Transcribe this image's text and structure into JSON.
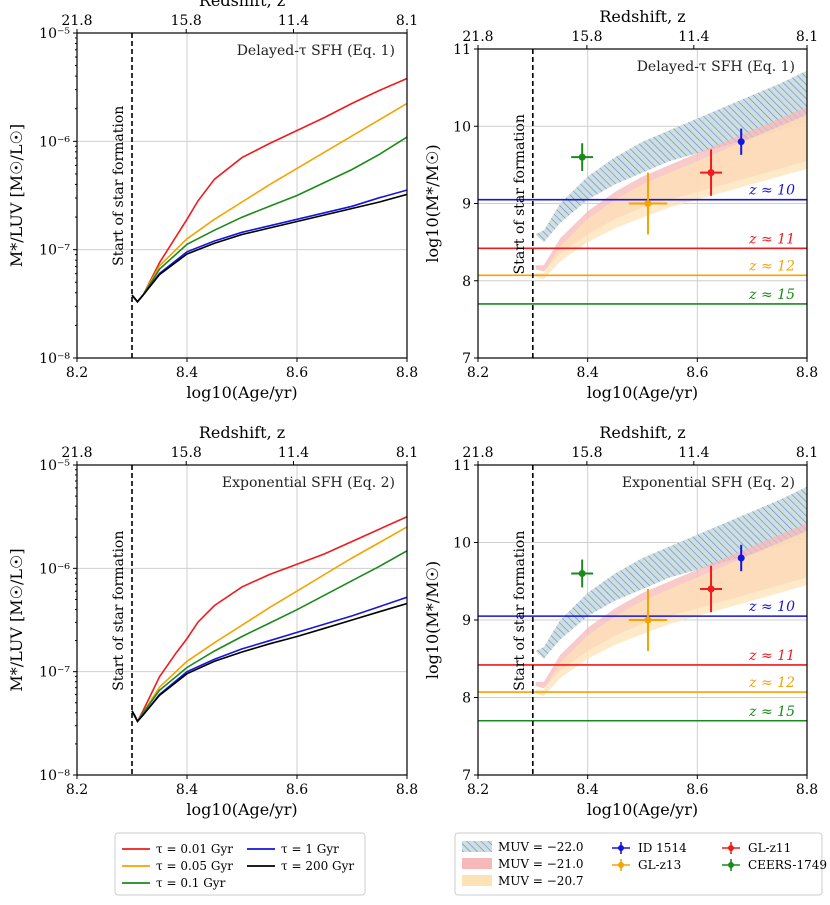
{
  "chart_data": [
    {
      "id": "p1",
      "type": "line",
      "title": "",
      "annotation": "Delayed-τ SFH (Eq. 1)",
      "xlabel": "log10(Age/yr)",
      "ylabel": "M*/LUV [M☉/L☉]",
      "top_xlabel": "Redshift, z",
      "xlim": [
        8.2,
        8.8
      ],
      "ylim_log10": [
        -8,
        -5
      ],
      "yscale": "log",
      "xticks": [
        "8.2",
        "8.4",
        "8.6",
        "8.8"
      ],
      "yticks": [
        "10⁻⁸",
        "10⁻⁷",
        "10⁻⁶",
        "10⁻⁵"
      ],
      "top_ticks": [
        "21.8",
        "15.8",
        "11.4",
        "8.1"
      ],
      "start_label": "Start of star formation",
      "start_x": 8.3,
      "series": [
        {
          "name": "τ = 0.01 Gyr",
          "color": "#ee1c1c",
          "x": [
            8.3,
            8.31,
            8.32,
            8.35,
            8.38,
            8.4,
            8.42,
            8.45,
            8.5,
            8.55,
            8.6,
            8.65,
            8.7,
            8.75,
            8.8
          ],
          "y": [
            -7.42,
            -7.48,
            -7.42,
            -7.12,
            -6.88,
            -6.72,
            -6.55,
            -6.35,
            -6.15,
            -6.02,
            -5.9,
            -5.78,
            -5.65,
            -5.53,
            -5.42
          ]
        },
        {
          "name": "τ = 0.05 Gyr",
          "color": "#f5a300",
          "x": [
            8.3,
            8.31,
            8.32,
            8.35,
            8.4,
            8.45,
            8.5,
            8.55,
            8.6,
            8.65,
            8.7,
            8.75,
            8.8
          ],
          "y": [
            -7.42,
            -7.48,
            -7.42,
            -7.15,
            -6.9,
            -6.72,
            -6.56,
            -6.4,
            -6.25,
            -6.1,
            -5.95,
            -5.8,
            -5.65
          ]
        },
        {
          "name": "τ = 0.1 Gyr",
          "color": "#1b8a1b",
          "x": [
            8.3,
            8.31,
            8.32,
            8.35,
            8.4,
            8.45,
            8.5,
            8.55,
            8.6,
            8.65,
            8.7,
            8.75,
            8.8
          ],
          "y": [
            -7.42,
            -7.48,
            -7.42,
            -7.18,
            -6.95,
            -6.82,
            -6.7,
            -6.6,
            -6.5,
            -6.38,
            -6.26,
            -6.12,
            -5.96
          ]
        },
        {
          "name": "τ = 1 Gyr",
          "color": "#1515dd",
          "x": [
            8.3,
            8.31,
            8.32,
            8.35,
            8.4,
            8.45,
            8.5,
            8.55,
            8.6,
            8.65,
            8.7,
            8.75,
            8.8
          ],
          "y": [
            -7.42,
            -7.48,
            -7.42,
            -7.22,
            -7.02,
            -6.92,
            -6.84,
            -6.78,
            -6.72,
            -6.66,
            -6.6,
            -6.52,
            -6.45
          ]
        },
        {
          "name": "τ = 200 Gyr",
          "color": "#000000",
          "x": [
            8.3,
            8.31,
            8.32,
            8.35,
            8.4,
            8.45,
            8.5,
            8.55,
            8.6,
            8.65,
            8.7,
            8.75,
            8.8
          ],
          "y": [
            -7.42,
            -7.48,
            -7.42,
            -7.23,
            -7.04,
            -6.94,
            -6.86,
            -6.8,
            -6.74,
            -6.68,
            -6.62,
            -6.56,
            -6.49
          ]
        }
      ]
    },
    {
      "id": "p2",
      "type": "area",
      "annotation": "Delayed-τ SFH (Eq. 1)",
      "xlabel": "log10(Age/yr)",
      "ylabel": "log10(M*/M☉)",
      "top_xlabel": "Redshift, z",
      "xlim": [
        8.2,
        8.8
      ],
      "ylim": [
        7,
        11
      ],
      "xticks": [
        "8.2",
        "8.4",
        "8.6",
        "8.8"
      ],
      "yticks": [
        "7",
        "8",
        "9",
        "10",
        "11"
      ],
      "top_ticks": [
        "21.8",
        "15.8",
        "11.4",
        "8.1"
      ],
      "start_label": "Start of star formation",
      "start_x": 8.3,
      "bands": [
        {
          "name": "MUV = −22.0",
          "fill": "#d4e8c6",
          "hatch": true,
          "x": [
            8.305,
            8.32,
            8.35,
            8.4,
            8.45,
            8.5,
            8.55,
            8.6,
            8.65,
            8.7,
            8.75,
            8.8
          ],
          "lower": [
            8.6,
            8.5,
            8.75,
            9.05,
            9.25,
            9.4,
            9.55,
            9.65,
            9.75,
            9.85,
            9.95,
            10.05
          ],
          "upper": [
            8.6,
            8.65,
            9.0,
            9.35,
            9.6,
            9.8,
            9.95,
            10.1,
            10.25,
            10.4,
            10.55,
            10.72
          ]
        },
        {
          "name": "MUV = −21.0",
          "fill": "#f6b8b8",
          "hatch": false,
          "x": [
            8.305,
            8.32,
            8.35,
            8.4,
            8.45,
            8.5,
            8.55,
            8.6,
            8.65,
            8.7,
            8.75,
            8.8
          ],
          "lower": [
            8.15,
            8.12,
            8.35,
            8.6,
            8.8,
            8.95,
            9.05,
            9.15,
            9.25,
            9.35,
            9.45,
            9.55
          ],
          "upper": [
            8.2,
            8.2,
            8.55,
            8.9,
            9.15,
            9.35,
            9.5,
            9.65,
            9.8,
            9.95,
            10.1,
            10.25
          ]
        },
        {
          "name": "MUV = −20.7",
          "fill": "#fde2b5",
          "hatch": false,
          "x": [
            8.305,
            8.32,
            8.35,
            8.4,
            8.45,
            8.5,
            8.55,
            8.6,
            8.65,
            8.7,
            8.75,
            8.8
          ],
          "lower": [
            8.05,
            8.02,
            8.25,
            8.5,
            8.68,
            8.82,
            8.95,
            9.05,
            9.15,
            9.25,
            9.35,
            9.45
          ],
          "upper": [
            8.1,
            8.1,
            8.45,
            8.8,
            9.05,
            9.25,
            9.4,
            9.55,
            9.7,
            9.85,
            10.0,
            10.15
          ]
        }
      ],
      "hlines": [
        {
          "label": "z ≈ 10",
          "y": 9.05,
          "color": "#1515dd"
        },
        {
          "label": "z ≈ 11",
          "y": 8.42,
          "color": "#ee1c1c"
        },
        {
          "label": "z ≈ 12",
          "y": 8.07,
          "color": "#f5a300"
        },
        {
          "label": "z ≈ 15",
          "y": 7.7,
          "color": "#1b8a1b"
        }
      ],
      "points": [
        {
          "name": "ID 1514",
          "color": "#1515dd",
          "x": 8.68,
          "y": 9.8,
          "xerr": 0.005,
          "yerr": 0.17
        },
        {
          "name": "GL-z11",
          "color": "#ee1c1c",
          "x": 8.625,
          "y": 9.4,
          "xerr": 0.02,
          "yerr": 0.3
        },
        {
          "name": "GL-z13",
          "color": "#f5a300",
          "x": 8.51,
          "y": 9.0,
          "xerr": 0.035,
          "yerr": 0.4
        },
        {
          "name": "CEERS-1749",
          "color": "#1b8a1b",
          "x": 8.39,
          "y": 9.6,
          "xerr": 0.02,
          "yerr": 0.18
        }
      ]
    },
    {
      "id": "p3",
      "type": "line",
      "annotation": "Exponential SFH (Eq. 2)",
      "xlabel": "log10(Age/yr)",
      "ylabel": "M*/LUV [M☉/L☉]",
      "top_xlabel": "Redshift, z",
      "xlim": [
        8.2,
        8.8
      ],
      "ylim_log10": [
        -8,
        -5
      ],
      "yscale": "log",
      "xticks": [
        "8.2",
        "8.4",
        "8.6",
        "8.8"
      ],
      "yticks": [
        "10⁻⁸",
        "10⁻⁷",
        "10⁻⁶",
        "10⁻⁵"
      ],
      "top_ticks": [
        "21.8",
        "15.8",
        "11.4",
        "8.1"
      ],
      "start_label": "Start of star formation",
      "start_x": 8.3,
      "series": [
        {
          "name": "τ = 0.01 Gyr",
          "color": "#ee1c1c",
          "x": [
            8.3,
            8.305,
            8.31,
            8.32,
            8.35,
            8.38,
            8.4,
            8.42,
            8.45,
            8.5,
            8.55,
            8.6,
            8.65,
            8.7,
            8.75,
            8.8
          ],
          "y": [
            -7.38,
            -7.42,
            -7.48,
            -7.38,
            -7.05,
            -6.82,
            -6.68,
            -6.52,
            -6.36,
            -6.18,
            -6.06,
            -5.96,
            -5.86,
            -5.74,
            -5.62,
            -5.5
          ]
        },
        {
          "name": "τ = 0.05 Gyr",
          "color": "#f5a300",
          "x": [
            8.3,
            8.31,
            8.32,
            8.35,
            8.4,
            8.45,
            8.5,
            8.55,
            8.6,
            8.65,
            8.7,
            8.75,
            8.8
          ],
          "y": [
            -7.38,
            -7.48,
            -7.4,
            -7.15,
            -6.9,
            -6.72,
            -6.55,
            -6.38,
            -6.22,
            -6.06,
            -5.9,
            -5.75,
            -5.6
          ]
        },
        {
          "name": "τ = 0.1 Gyr",
          "color": "#1b8a1b",
          "x": [
            8.3,
            8.31,
            8.32,
            8.35,
            8.4,
            8.45,
            8.5,
            8.55,
            8.6,
            8.65,
            8.7,
            8.75,
            8.8
          ],
          "y": [
            -7.38,
            -7.48,
            -7.4,
            -7.18,
            -6.96,
            -6.8,
            -6.66,
            -6.53,
            -6.4,
            -6.26,
            -6.12,
            -5.98,
            -5.83
          ]
        },
        {
          "name": "τ = 1 Gyr",
          "color": "#1515dd",
          "x": [
            8.3,
            8.31,
            8.32,
            8.35,
            8.4,
            8.45,
            8.5,
            8.55,
            8.6,
            8.65,
            8.7,
            8.75,
            8.8
          ],
          "y": [
            -7.38,
            -7.48,
            -7.42,
            -7.22,
            -7.0,
            -6.88,
            -6.78,
            -6.7,
            -6.62,
            -6.54,
            -6.46,
            -6.37,
            -6.28
          ]
        },
        {
          "name": "τ = 200 Gyr",
          "color": "#000000",
          "x": [
            8.3,
            8.31,
            8.32,
            8.35,
            8.4,
            8.45,
            8.5,
            8.55,
            8.6,
            8.65,
            8.7,
            8.75,
            8.8
          ],
          "y": [
            -7.38,
            -7.48,
            -7.42,
            -7.23,
            -7.02,
            -6.9,
            -6.81,
            -6.73,
            -6.66,
            -6.58,
            -6.5,
            -6.42,
            -6.34
          ]
        }
      ]
    },
    {
      "id": "p4",
      "type": "area",
      "annotation": "Exponential SFH (Eq. 2)",
      "xlabel": "log10(Age/yr)",
      "ylabel": "log10(M*/M☉)",
      "top_xlabel": "Redshift, z",
      "xlim": [
        8.2,
        8.8
      ],
      "ylim": [
        7,
        11
      ],
      "xticks": [
        "8.2",
        "8.4",
        "8.6",
        "8.8"
      ],
      "yticks": [
        "7",
        "8",
        "9",
        "10",
        "11"
      ],
      "top_ticks": [
        "21.8",
        "15.8",
        "11.4",
        "8.1"
      ],
      "start_label": "Start of star formation",
      "start_x": 8.3,
      "bands": [
        {
          "name": "MUV = −22.0",
          "fill": "#d4e8c6",
          "hatch": true,
          "x": [
            8.305,
            8.32,
            8.35,
            8.4,
            8.45,
            8.5,
            8.55,
            8.6,
            8.65,
            8.7,
            8.75,
            8.8
          ],
          "lower": [
            8.6,
            8.5,
            8.75,
            9.05,
            9.25,
            9.4,
            9.55,
            9.65,
            9.75,
            9.85,
            9.95,
            10.05
          ],
          "upper": [
            8.6,
            8.65,
            9.0,
            9.35,
            9.6,
            9.8,
            9.95,
            10.1,
            10.25,
            10.4,
            10.55,
            10.72
          ]
        },
        {
          "name": "MUV = −21.0",
          "fill": "#f6b8b8",
          "hatch": false,
          "x": [
            8.305,
            8.32,
            8.35,
            8.4,
            8.45,
            8.5,
            8.55,
            8.6,
            8.65,
            8.7,
            8.75,
            8.8
          ],
          "lower": [
            8.15,
            8.12,
            8.35,
            8.6,
            8.8,
            8.95,
            9.05,
            9.15,
            9.25,
            9.35,
            9.45,
            9.55
          ],
          "upper": [
            8.2,
            8.2,
            8.55,
            8.9,
            9.15,
            9.35,
            9.5,
            9.65,
            9.8,
            9.95,
            10.1,
            10.25
          ]
        },
        {
          "name": "MUV = −20.7",
          "fill": "#fde2b5",
          "hatch": false,
          "x": [
            8.305,
            8.32,
            8.35,
            8.4,
            8.45,
            8.5,
            8.55,
            8.6,
            8.65,
            8.7,
            8.75,
            8.8
          ],
          "lower": [
            8.05,
            8.02,
            8.25,
            8.5,
            8.68,
            8.82,
            8.95,
            9.05,
            9.15,
            9.25,
            9.35,
            9.45
          ],
          "upper": [
            8.1,
            8.1,
            8.45,
            8.8,
            9.05,
            9.25,
            9.4,
            9.55,
            9.7,
            9.85,
            10.0,
            10.15
          ]
        }
      ],
      "hlines": [
        {
          "label": "z ≈ 10",
          "y": 9.05,
          "color": "#1515dd"
        },
        {
          "label": "z ≈ 11",
          "y": 8.42,
          "color": "#ee1c1c"
        },
        {
          "label": "z ≈ 12",
          "y": 8.07,
          "color": "#f5a300"
        },
        {
          "label": "z ≈ 15",
          "y": 7.7,
          "color": "#1b8a1b"
        }
      ],
      "points": [
        {
          "name": "ID 1514",
          "color": "#1515dd",
          "x": 8.68,
          "y": 9.8,
          "xerr": 0.005,
          "yerr": 0.17
        },
        {
          "name": "GL-z11",
          "color": "#ee1c1c",
          "x": 8.625,
          "y": 9.4,
          "xerr": 0.02,
          "yerr": 0.3
        },
        {
          "name": "GL-z13",
          "color": "#f5a300",
          "x": 8.51,
          "y": 9.0,
          "xerr": 0.035,
          "yerr": 0.4
        },
        {
          "name": "CEERS-1749",
          "color": "#1b8a1b",
          "x": 8.39,
          "y": 9.6,
          "xerr": 0.02,
          "yerr": 0.18
        }
      ]
    }
  ],
  "legend_left": [
    {
      "label": "τ = 0.01 Gyr",
      "color": "#ee1c1c"
    },
    {
      "label": "τ = 0.05 Gyr",
      "color": "#f5a300"
    },
    {
      "label": "τ = 0.1 Gyr",
      "color": "#1b8a1b"
    },
    {
      "label": "τ = 1 Gyr",
      "color": "#1515dd"
    },
    {
      "label": "τ = 200 Gyr",
      "color": "#000000"
    }
  ],
  "legend_right_bands": [
    {
      "label": "MUV = −22.0",
      "fill": "#d4e8c6",
      "hatch": true
    },
    {
      "label": "MUV = −21.0",
      "fill": "#f6b8b8",
      "hatch": false
    },
    {
      "label": "MUV = −20.7",
      "fill": "#fde2b5",
      "hatch": false
    }
  ],
  "legend_right_points": [
    {
      "label": "ID 1514",
      "color": "#1515dd"
    },
    {
      "label": "GL-z11",
      "color": "#ee1c1c"
    },
    {
      "label": "GL-z13",
      "color": "#f5a300"
    },
    {
      "label": "CEERS-1749",
      "color": "#1b8a1b"
    }
  ]
}
